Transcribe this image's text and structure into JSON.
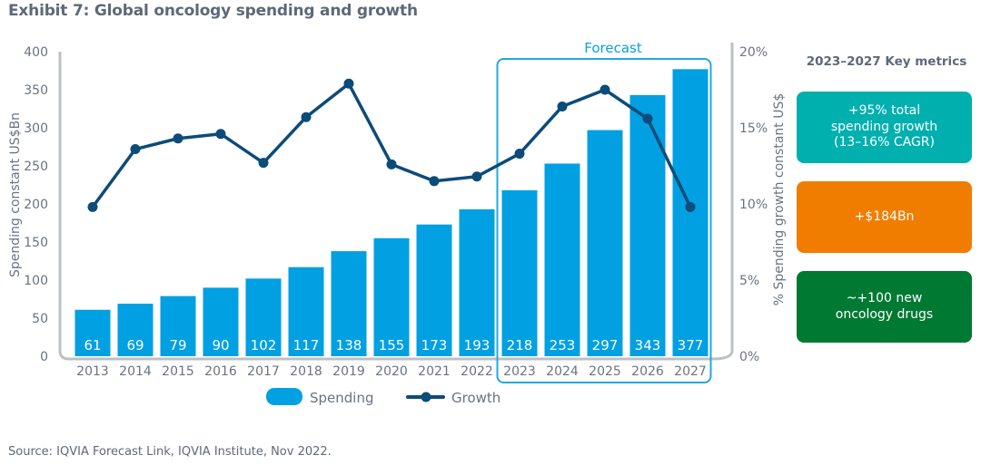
{
  "title": "Exhibit 7: Global oncology spending and growth",
  "source": "Source: IQVIA Forecast Link, IQVIA Institute, Nov 2022.",
  "colors": {
    "bar": "#00a0e2",
    "line": "#0c4b7a",
    "forecast_box": "#22a8e0",
    "axis": "#bcc0c6",
    "metric_teal": "#00b0ae",
    "metric_orange": "#f07d00",
    "metric_green": "#007a33"
  },
  "chart_data": {
    "type": "bar",
    "title": "Exhibit 7: Global oncology spending and growth",
    "categories": [
      "2013",
      "2014",
      "2015",
      "2016",
      "2017",
      "2018",
      "2019",
      "2020",
      "2021",
      "2022",
      "2023",
      "2024",
      "2025",
      "2026",
      "2027"
    ],
    "series": [
      {
        "name": "Spending",
        "type": "bar",
        "axis": "left",
        "values": [
          61,
          69,
          79,
          90,
          102,
          117,
          138,
          155,
          173,
          193,
          218,
          253,
          297,
          343,
          377
        ]
      },
      {
        "name": "Growth",
        "type": "line",
        "axis": "right",
        "values": [
          9.8,
          13.6,
          14.3,
          14.6,
          12.7,
          15.7,
          17.9,
          12.6,
          11.5,
          11.8,
          13.3,
          16.4,
          17.5,
          15.6,
          9.8
        ]
      }
    ],
    "ylabel": "Spending constant US$Bn",
    "ylabel_right": "% Spending growth constant US$",
    "ylim": [
      0,
      400
    ],
    "yticks": [
      0,
      50,
      100,
      150,
      200,
      250,
      300,
      350,
      400
    ],
    "ylim_right": [
      0,
      20
    ],
    "yticks_right": [
      "0%",
      "5%",
      "10%",
      "15%",
      "20%"
    ],
    "yticks_right_values": [
      0,
      5,
      10,
      15,
      20
    ],
    "grid": false,
    "legend": {
      "position": "bottom",
      "entries": [
        "Spending",
        "Growth"
      ]
    },
    "annotation": {
      "label": "Forecast",
      "from": "2023",
      "to": "2027"
    }
  },
  "metrics": {
    "title": "2023–2027 Key metrics",
    "items": [
      {
        "text": "+95% total\nspending growth\n(13–16% CAGR)",
        "color": "#00b0ae"
      },
      {
        "text": "+$184Bn",
        "color": "#f07d00"
      },
      {
        "text": "~+100 new\noncology drugs",
        "color": "#007a33"
      }
    ]
  }
}
